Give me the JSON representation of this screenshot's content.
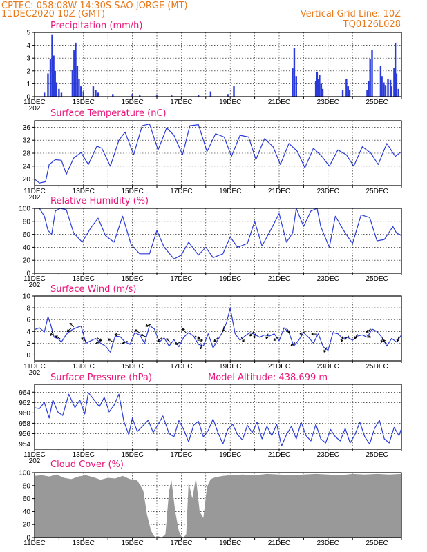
{
  "header": {
    "station": "CPTEC:   058:08W-14:30S  SAO JORGE (MT)",
    "datetime": "11DEC2020 10Z (GMT)",
    "grid_note": "Vertical Grid Line: 10Z",
    "code": "TQ0126L028"
  },
  "x_ticks": [
    "11DEC",
    "13DEC",
    "15DEC",
    "17DEC",
    "19DEC",
    "21DEC",
    "23DEC",
    "25DEC"
  ],
  "x_range_days": [
    11.0,
    26.0
  ],
  "cropped_year_label": "202",
  "colors": {
    "series": "#2a3bd9",
    "cloud": "#999999",
    "header": "#e87a1e",
    "title": "#e8147a"
  },
  "chart_data": [
    {
      "type": "bar",
      "title": "Precipitation (mm/h)",
      "ylim": [
        0,
        5
      ],
      "yticks": [
        "0",
        "1",
        "2",
        "3",
        "4",
        "5"
      ],
      "grid": true,
      "x": [
        11.4,
        11.55,
        11.65,
        11.72,
        11.78,
        11.84,
        11.9,
        12.0,
        12.1,
        12.55,
        12.62,
        12.68,
        12.75,
        12.82,
        12.9,
        13.0,
        13.4,
        13.5,
        13.6,
        14.2,
        15.0,
        15.3,
        16.0,
        16.6,
        17.7,
        18.2,
        18.9,
        19.15,
        21.55,
        21.62,
        21.7,
        22.5,
        22.55,
        22.6,
        22.65,
        22.72,
        22.78,
        23.6,
        23.75,
        23.82,
        23.88,
        24.6,
        24.65,
        24.72,
        24.8,
        25.15,
        25.2,
        25.28,
        25.35,
        25.45,
        25.55,
        25.6,
        25.7,
        25.75,
        25.8,
        25.88
      ],
      "values": [
        0.3,
        1.8,
        2.9,
        4.8,
        3.2,
        2.0,
        1.1,
        0.6,
        0.3,
        2.1,
        3.6,
        4.2,
        2.4,
        1.4,
        0.8,
        0.4,
        0.8,
        0.5,
        0.3,
        0.2,
        0.2,
        0.1,
        0.1,
        0.1,
        0.15,
        0.4,
        0.2,
        0.8,
        2.2,
        3.8,
        1.6,
        1.2,
        1.9,
        1.4,
        1.7,
        1.0,
        0.6,
        0.5,
        1.4,
        0.8,
        0.5,
        0.5,
        1.2,
        2.9,
        3.6,
        2.4,
        1.6,
        1.1,
        0.9,
        1.4,
        1.3,
        0.8,
        2.2,
        4.2,
        1.8,
        0.6
      ]
    },
    {
      "type": "line",
      "title": "Surface Temperature (nC)",
      "ylim": [
        18,
        38
      ],
      "yticks": [
        "20",
        "24",
        "28",
        "32",
        "36"
      ],
      "grid": true,
      "x": [
        11.0,
        11.2,
        11.45,
        11.6,
        11.85,
        12.1,
        12.3,
        12.6,
        12.9,
        13.2,
        13.55,
        13.75,
        14.1,
        14.45,
        14.7,
        15.05,
        15.4,
        15.7,
        16.05,
        16.4,
        16.7,
        17.05,
        17.35,
        17.7,
        18.05,
        18.4,
        18.75,
        19.05,
        19.4,
        19.75,
        20.05,
        20.4,
        20.75,
        21.05,
        21.4,
        21.75,
        22.05,
        22.4,
        22.75,
        23.05,
        23.4,
        23.75,
        24.05,
        24.4,
        24.75,
        25.05,
        25.4,
        25.75,
        26.0
      ],
      "values": [
        20.0,
        18.8,
        19.2,
        24.5,
        26.0,
        25.8,
        21.5,
        26.5,
        28.2,
        24.5,
        30.2,
        29.5,
        24.0,
        32.0,
        34.5,
        27.5,
        36.5,
        37.0,
        29.0,
        35.8,
        33.5,
        27.5,
        36.5,
        36.8,
        28.5,
        34.0,
        33.0,
        27.0,
        33.5,
        33.0,
        26.0,
        32.5,
        30.0,
        24.5,
        31.0,
        28.5,
        23.5,
        29.5,
        27.0,
        24.0,
        29.0,
        27.5,
        24.0,
        30.0,
        28.0,
        24.5,
        31.0,
        27.0,
        28.5
      ]
    },
    {
      "type": "line",
      "title": "Relative Humidity (%)",
      "ylim": [
        0,
        100
      ],
      "yticks": [
        "0",
        "20",
        "40",
        "60",
        "80",
        "100"
      ],
      "grid": true,
      "x": [
        11.0,
        11.2,
        11.4,
        11.55,
        11.7,
        11.85,
        12.05,
        12.3,
        12.6,
        12.95,
        13.3,
        13.6,
        13.9,
        14.25,
        14.6,
        14.95,
        15.3,
        15.7,
        16.0,
        16.3,
        16.7,
        17.0,
        17.3,
        17.7,
        18.0,
        18.3,
        18.7,
        19.0,
        19.3,
        19.7,
        20.0,
        20.3,
        20.7,
        21.0,
        21.3,
        21.55,
        21.7,
        22.0,
        22.3,
        22.55,
        22.7,
        23.05,
        23.3,
        23.7,
        24.0,
        24.35,
        24.7,
        25.0,
        25.3,
        25.65,
        25.8,
        26.0
      ],
      "values": [
        100,
        100,
        88,
        66,
        60,
        96,
        100,
        98,
        62,
        48,
        70,
        85,
        58,
        48,
        88,
        44,
        30,
        30,
        66,
        40,
        22,
        28,
        48,
        28,
        40,
        24,
        30,
        56,
        40,
        46,
        80,
        42,
        70,
        92,
        48,
        62,
        100,
        72,
        96,
        100,
        72,
        40,
        88,
        62,
        46,
        90,
        86,
        50,
        52,
        72,
        62,
        58
      ]
    },
    {
      "type": "line",
      "title": "Surface Wind (m/s)",
      "ylim": [
        -1,
        10
      ],
      "yticks": [
        "0",
        "2",
        "4",
        "6",
        "8",
        "10"
      ],
      "grid": true,
      "x": [
        11.0,
        11.2,
        11.4,
        11.55,
        11.65,
        11.8,
        11.95,
        12.1,
        12.3,
        12.5,
        12.7,
        12.9,
        13.1,
        13.3,
        13.5,
        13.7,
        13.9,
        14.1,
        14.3,
        14.5,
        14.7,
        14.9,
        15.1,
        15.3,
        15.5,
        15.7,
        15.9,
        16.1,
        16.3,
        16.5,
        16.7,
        16.9,
        17.1,
        17.3,
        17.5,
        17.7,
        17.9,
        18.1,
        18.3,
        18.5,
        18.7,
        18.85,
        19.0,
        19.2,
        19.4,
        19.6,
        19.8,
        20.0,
        20.2,
        20.4,
        20.6,
        20.8,
        21.0,
        21.2,
        21.4,
        21.6,
        21.8,
        22.0,
        22.2,
        22.4,
        22.6,
        22.8,
        23.0,
        23.2,
        23.4,
        23.6,
        23.8,
        24.0,
        24.2,
        24.4,
        24.6,
        24.8,
        25.0,
        25.2,
        25.4,
        25.6,
        25.8,
        26.0
      ],
      "values": [
        4.3,
        4.6,
        3.9,
        6.5,
        5.3,
        3.0,
        2.8,
        2.2,
        3.5,
        4.2,
        4.6,
        4.9,
        2.0,
        2.4,
        2.8,
        2.0,
        1.5,
        0.5,
        3.2,
        3.1,
        2.2,
        1.8,
        3.8,
        3.4,
        2.0,
        5.0,
        4.4,
        2.2,
        2.9,
        1.5,
        2.6,
        1.4,
        3.0,
        3.8,
        3.2,
        1.8,
        1.5,
        3.6,
        1.2,
        2.6,
        4.0,
        5.5,
        8.0,
        3.6,
        2.5,
        3.2,
        3.8,
        3.5,
        3.0,
        3.4,
        3.2,
        3.6,
        2.4,
        4.6,
        3.8,
        1.5,
        2.5,
        3.8,
        3.0,
        2.0,
        3.6,
        1.4,
        0.8,
        3.8,
        3.6,
        2.8,
        3.0,
        2.5,
        3.2,
        3.4,
        3.0,
        4.4,
        4.0,
        3.0,
        1.5,
        2.8,
        2.2,
        3.4
      ]
    },
    {
      "type": "line",
      "title": "Surface Pressure (hPa)",
      "annotation": "Model Altitude: 438.699 m",
      "ylim": [
        953,
        965.5
      ],
      "yticks": [
        "954",
        "956",
        "958",
        "960",
        "962",
        "964"
      ],
      "grid": true,
      "x": [
        11.0,
        11.2,
        11.4,
        11.6,
        11.75,
        11.95,
        12.15,
        12.4,
        12.65,
        12.85,
        13.05,
        13.2,
        13.45,
        13.65,
        13.85,
        14.05,
        14.25,
        14.45,
        14.65,
        14.85,
        15.0,
        15.2,
        15.45,
        15.65,
        15.85,
        16.05,
        16.25,
        16.5,
        16.7,
        16.9,
        17.1,
        17.3,
        17.5,
        17.7,
        17.9,
        18.1,
        18.3,
        18.5,
        18.7,
        18.9,
        19.1,
        19.3,
        19.5,
        19.7,
        19.9,
        20.1,
        20.3,
        20.5,
        20.7,
        20.9,
        21.1,
        21.3,
        21.5,
        21.7,
        21.9,
        22.1,
        22.3,
        22.5,
        22.7,
        22.9,
        23.1,
        23.3,
        23.5,
        23.7,
        23.9,
        24.1,
        24.3,
        24.5,
        24.7,
        24.9,
        25.1,
        25.3,
        25.5,
        25.7,
        25.9,
        26.0
      ],
      "values": [
        961.0,
        960.8,
        962.0,
        959.0,
        962.5,
        960.2,
        959.5,
        963.6,
        961.0,
        962.5,
        959.8,
        963.9,
        962.4,
        961.2,
        963.0,
        960.2,
        961.5,
        963.6,
        958.4,
        955.8,
        959.0,
        956.4,
        957.6,
        958.6,
        956.2,
        957.8,
        959.4,
        956.0,
        955.4,
        958.5,
        956.8,
        954.4,
        957.6,
        958.4,
        955.4,
        956.6,
        958.8,
        956.2,
        954.0,
        956.8,
        957.8,
        955.8,
        954.8,
        957.6,
        956.2,
        958.2,
        955.0,
        957.4,
        955.6,
        957.8,
        953.6,
        955.8,
        957.4,
        955.0,
        958.2,
        955.6,
        954.6,
        957.8,
        955.0,
        954.2,
        956.8,
        955.4,
        954.6,
        957.0,
        954.2,
        955.8,
        958.2,
        955.4,
        954.0,
        957.0,
        958.6,
        955.0,
        954.2,
        957.2,
        955.6,
        957.0
      ]
    },
    {
      "type": "area",
      "title": "Cloud Cover (%)",
      "ylim": [
        0,
        100
      ],
      "yticks": [
        "0",
        "20",
        "40",
        "60",
        "80",
        "100"
      ],
      "grid": true,
      "x": [
        11.0,
        11.3,
        11.6,
        11.9,
        12.2,
        12.5,
        12.8,
        13.1,
        13.4,
        13.7,
        14.0,
        14.3,
        14.6,
        14.9,
        15.2,
        15.45,
        15.6,
        15.75,
        15.85,
        15.95,
        16.05,
        16.2,
        16.35,
        16.5,
        16.6,
        16.75,
        16.9,
        17.0,
        17.1,
        17.2,
        17.3,
        17.45,
        17.6,
        17.75,
        17.9,
        18.05,
        18.2,
        18.4,
        18.7,
        19.0,
        19.5,
        20.0,
        20.5,
        21.0,
        21.5,
        22.0,
        22.5,
        23.0,
        23.5,
        24.0,
        24.5,
        25.0,
        25.5,
        26.0
      ],
      "values": [
        95,
        96,
        94,
        97,
        92,
        90,
        94,
        96,
        93,
        89,
        92,
        91,
        95,
        90,
        88,
        72,
        35,
        12,
        4,
        0,
        2,
        0,
        5,
        72,
        88,
        40,
        10,
        2,
        0,
        5,
        85,
        60,
        92,
        40,
        30,
        78,
        90,
        93,
        95,
        96,
        97,
        96,
        98,
        97,
        96,
        97,
        98,
        97,
        96,
        98,
        97,
        98,
        97,
        98
      ]
    }
  ]
}
